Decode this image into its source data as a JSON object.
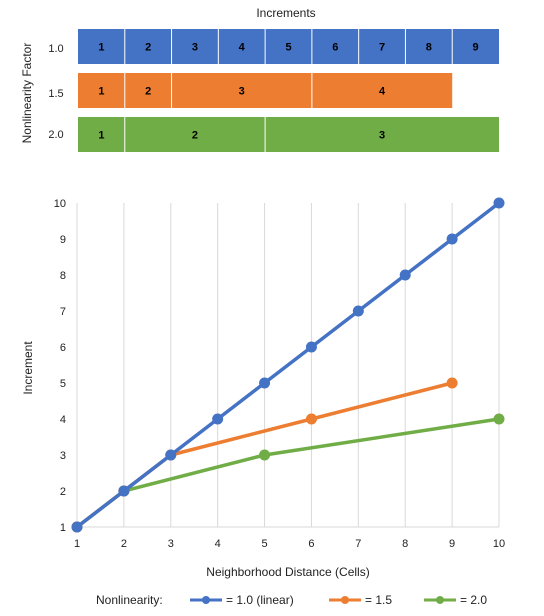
{
  "increments_chart": {
    "title": "Increments",
    "ylabel": "Nonlinearity Factor",
    "rows": [
      {
        "factor_label": "1.0",
        "color": "#4472C4",
        "segments": [
          {
            "label": "1",
            "start": 1,
            "end": 2
          },
          {
            "label": "2",
            "start": 2,
            "end": 3
          },
          {
            "label": "3",
            "start": 3,
            "end": 4
          },
          {
            "label": "4",
            "start": 4,
            "end": 5
          },
          {
            "label": "5",
            "start": 5,
            "end": 6
          },
          {
            "label": "6",
            "start": 6,
            "end": 7
          },
          {
            "label": "7",
            "start": 7,
            "end": 8
          },
          {
            "label": "8",
            "start": 8,
            "end": 9
          },
          {
            "label": "9",
            "start": 9,
            "end": 10
          }
        ]
      },
      {
        "factor_label": "1.5",
        "color": "#ED7D31",
        "segments": [
          {
            "label": "1",
            "start": 1,
            "end": 2
          },
          {
            "label": "2",
            "start": 2,
            "end": 3
          },
          {
            "label": "3",
            "start": 3,
            "end": 6
          },
          {
            "label": "4",
            "start": 6,
            "end": 9
          }
        ]
      },
      {
        "factor_label": "2.0",
        "color": "#70AD47",
        "segments": [
          {
            "label": "1",
            "start": 1,
            "end": 2
          },
          {
            "label": "2",
            "start": 2,
            "end": 5
          },
          {
            "label": "3",
            "start": 5,
            "end": 10
          }
        ]
      }
    ]
  },
  "chart_data": {
    "type": "line",
    "xlabel": "Neighborhood Distance (Cells)",
    "ylabel": "Increment",
    "xlim": [
      1,
      10
    ],
    "ylim": [
      1,
      10
    ],
    "xticks": [
      "1",
      "2",
      "3",
      "4",
      "5",
      "6",
      "7",
      "8",
      "9",
      "10"
    ],
    "yticks": [
      "1",
      "2",
      "3",
      "4",
      "5",
      "6",
      "7",
      "8",
      "9",
      "10"
    ],
    "grid": "vertical",
    "legend_title": "Nonlinearity:",
    "legend_position": "bottom",
    "series": [
      {
        "name": "= 1.0 (linear)",
        "color": "#4472C4",
        "x": [
          1,
          2,
          3,
          4,
          5,
          6,
          7,
          8,
          9,
          10
        ],
        "y": [
          1,
          2,
          3,
          4,
          5,
          6,
          7,
          8,
          9,
          10
        ]
      },
      {
        "name": "= 1.5",
        "color": "#ED7D31",
        "x": [
          1,
          2,
          3,
          6,
          9
        ],
        "y": [
          1,
          2,
          3,
          4,
          5
        ]
      },
      {
        "name": "= 2.0",
        "color": "#70AD47",
        "x": [
          1,
          2,
          5,
          10
        ],
        "y": [
          1,
          2,
          3,
          4
        ]
      }
    ]
  }
}
